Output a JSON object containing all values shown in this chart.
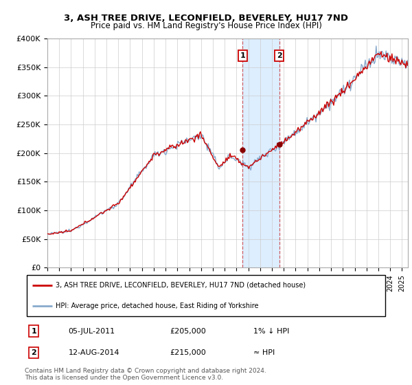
{
  "title": "3, ASH TREE DRIVE, LECONFIELD, BEVERLEY, HU17 7ND",
  "subtitle": "Price paid vs. HM Land Registry's House Price Index (HPI)",
  "ylim": [
    0,
    400000
  ],
  "yticks": [
    0,
    50000,
    100000,
    150000,
    200000,
    250000,
    300000,
    350000,
    400000
  ],
  "ytick_labels": [
    "£0",
    "£50K",
    "£100K",
    "£150K",
    "£200K",
    "£250K",
    "£300K",
    "£350K",
    "£400K"
  ],
  "xlim_start": 1995.0,
  "xlim_end": 2025.5,
  "sale1_date": 2011.51,
  "sale1_price": 205000,
  "sale1_label": "1",
  "sale2_date": 2014.62,
  "sale2_price": 215000,
  "sale2_label": "2",
  "highlight_color": "#ddeeff",
  "red_line_color": "#cc0000",
  "blue_line_color": "#88aacc",
  "marker_color": "#880000",
  "marker_box_color": "#cc0000",
  "dashed_line_color": "#cc4444",
  "legend_line1": "3, ASH TREE DRIVE, LECONFIELD, BEVERLEY, HU17 7ND (detached house)",
  "legend_line2": "HPI: Average price, detached house, East Riding of Yorkshire",
  "table_row1": [
    "1",
    "05-JUL-2011",
    "£205,000",
    "1% ↓ HPI"
  ],
  "table_row2": [
    "2",
    "12-AUG-2014",
    "£215,000",
    "≈ HPI"
  ],
  "footnote": "Contains HM Land Registry data © Crown copyright and database right 2024.\nThis data is licensed under the Open Government Licence v3.0.",
  "bg_color": "#ffffff",
  "plot_bg_color": "#ffffff",
  "grid_color": "#cccccc"
}
